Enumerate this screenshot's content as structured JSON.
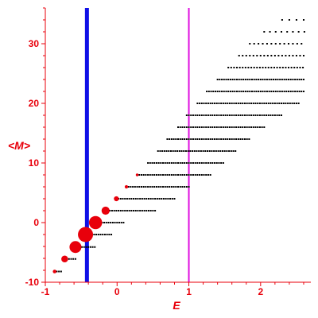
{
  "chart_data": {
    "type": "scatter",
    "title": "",
    "xlabel": "E",
    "ylabel": "<M>",
    "xlim": [
      -1,
      2.7
    ],
    "ylim": [
      -10,
      36
    ],
    "xticks": [
      -1,
      0,
      1,
      2
    ],
    "yticks": [
      -10,
      0,
      10,
      20,
      30
    ],
    "xtick_labels": [
      "-1",
      "0",
      "1",
      "2"
    ],
    "ytick_labels": [
      "-10",
      "0",
      "10",
      "20",
      "30"
    ],
    "grid": false,
    "vertical_lines": [
      {
        "x": -0.42,
        "color": "#1010e6",
        "style": "thick"
      },
      {
        "x": 1.0,
        "color": "#e010e0",
        "style": "thin"
      }
    ],
    "series": [
      {
        "marker": "red-circle",
        "color": "#e8000b",
        "points": [
          {
            "x": -0.87,
            "y": -8.2,
            "weight": 0.1
          },
          {
            "x": -0.73,
            "y": -6.1,
            "weight": 0.35
          },
          {
            "x": -0.58,
            "y": -4.1,
            "weight": 0.75
          },
          {
            "x": -0.44,
            "y": -2.0,
            "weight": 1.0
          },
          {
            "x": -0.3,
            "y": 0.0,
            "weight": 0.85
          },
          {
            "x": -0.16,
            "y": 2.0,
            "weight": 0.45
          },
          {
            "x": -0.01,
            "y": 4.0,
            "weight": 0.2
          },
          {
            "x": 0.13,
            "y": 6.0,
            "weight": 0.08
          },
          {
            "x": 0.28,
            "y": 8.0,
            "weight": 0.03
          }
        ]
      },
      {
        "marker": "black-dot",
        "color": "#000000",
        "rows": [
          {
            "y": -8.2,
            "x_start": -0.87,
            "x_end": -0.78,
            "step": 0.03
          },
          {
            "y": -6.1,
            "x_start": -0.73,
            "x_end": -0.58,
            "step": 0.03
          },
          {
            "y": -4.1,
            "x_start": -0.58,
            "x_end": -0.3,
            "step": 0.03
          },
          {
            "y": -2.0,
            "x_start": -0.44,
            "x_end": -0.06,
            "step": 0.03
          },
          {
            "y": 0.0,
            "x_start": -0.3,
            "x_end": 0.1,
            "step": 0.03
          },
          {
            "y": 2.0,
            "x_start": -0.16,
            "x_end": 0.55,
            "step": 0.03
          },
          {
            "y": 4.0,
            "x_start": -0.01,
            "x_end": 0.8,
            "step": 0.03
          },
          {
            "y": 6.0,
            "x_start": 0.13,
            "x_end": 1.02,
            "step": 0.03
          },
          {
            "y": 8.0,
            "x_start": 0.28,
            "x_end": 1.3,
            "step": 0.03
          },
          {
            "y": 10.0,
            "x_start": 0.43,
            "x_end": 1.5,
            "step": 0.03
          },
          {
            "y": 12.0,
            "x_start": 0.57,
            "x_end": 1.65,
            "step": 0.03
          },
          {
            "y": 14.0,
            "x_start": 0.7,
            "x_end": 1.85,
            "step": 0.03
          },
          {
            "y": 16.0,
            "x_start": 0.85,
            "x_end": 2.05,
            "step": 0.03
          },
          {
            "y": 18.0,
            "x_start": 0.97,
            "x_end": 2.3,
            "step": 0.03
          },
          {
            "y": 20.0,
            "x_start": 1.12,
            "x_end": 2.55,
            "step": 0.03
          },
          {
            "y": 22.0,
            "x_start": 1.25,
            "x_end": 2.62,
            "step": 0.03
          },
          {
            "y": 24.0,
            "x_start": 1.4,
            "x_end": 2.62,
            "step": 0.03
          },
          {
            "y": 26.0,
            "x_start": 1.55,
            "x_end": 2.62,
            "step": 0.04
          },
          {
            "y": 28.0,
            "x_start": 1.7,
            "x_end": 2.62,
            "step": 0.05
          },
          {
            "y": 30.0,
            "x_start": 1.85,
            "x_end": 2.62,
            "step": 0.06
          },
          {
            "y": 32.0,
            "x_start": 2.05,
            "x_end": 2.62,
            "step": 0.08
          },
          {
            "y": 34.0,
            "x_start": 2.3,
            "x_end": 2.62,
            "step": 0.1
          }
        ]
      }
    ]
  }
}
